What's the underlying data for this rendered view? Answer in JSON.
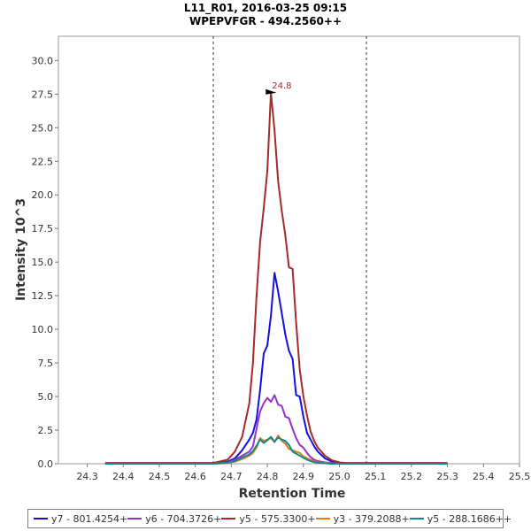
{
  "chart_data": {
    "type": "line",
    "title": "L11_R01, 2016-03-25 09:15",
    "subtitle": "WPEPVFGR - 494.2560++",
    "xlabel": "Retention Time",
    "ylabel": "Intensity 10^3",
    "xlim": [
      24.22,
      25.5
    ],
    "ylim": [
      0,
      31.8
    ],
    "xticks": [
      "24.3",
      "24.4",
      "24.5",
      "24.6",
      "24.7",
      "24.8",
      "24.9",
      "25.0",
      "25.1",
      "25.2",
      "25.3",
      "25.4",
      "25.5"
    ],
    "yticks": [
      "0.0",
      "2.5",
      "5.0",
      "7.5",
      "10.0",
      "12.5",
      "15.0",
      "17.5",
      "20.0",
      "22.5",
      "25.0",
      "27.5",
      "30.0"
    ],
    "boundaries": [
      24.65,
      25.075
    ],
    "annotation": {
      "text": "24.8",
      "x": 24.83,
      "y": 27.6
    },
    "x": [
      24.35,
      24.4,
      24.45,
      24.5,
      24.55,
      24.6,
      24.65,
      24.69,
      24.71,
      24.73,
      24.75,
      24.76,
      24.77,
      24.78,
      24.79,
      24.8,
      24.81,
      24.82,
      24.83,
      24.84,
      24.85,
      24.86,
      24.87,
      24.88,
      24.89,
      24.9,
      24.91,
      24.92,
      24.93,
      24.94,
      24.96,
      24.98,
      25.0,
      25.02,
      25.05,
      25.1,
      25.2,
      25.3
    ],
    "series": [
      {
        "name": "y7 - 801.4254+",
        "color": "#1010e0",
        "values": [
          0.05,
          0.05,
          0.05,
          0.05,
          0.05,
          0.05,
          0.05,
          0.15,
          0.4,
          1.0,
          1.8,
          2.3,
          3.3,
          5.5,
          8.2,
          8.8,
          11.0,
          14.2,
          12.8,
          11.2,
          9.6,
          8.4,
          7.8,
          5.1,
          5.0,
          3.5,
          2.3,
          1.8,
          1.3,
          0.9,
          0.4,
          0.15,
          0.05,
          0.05,
          0.05,
          0.05,
          0.05,
          0.05
        ]
      },
      {
        "name": "y6 - 704.3726+",
        "color": "#9932cc",
        "values": [
          0.02,
          0.02,
          0.02,
          0.02,
          0.02,
          0.02,
          0.02,
          0.1,
          0.3,
          0.6,
          0.9,
          1.3,
          2.6,
          3.9,
          4.5,
          4.9,
          4.6,
          5.1,
          4.4,
          4.3,
          3.5,
          3.4,
          2.6,
          1.9,
          1.4,
          1.2,
          0.8,
          0.5,
          0.3,
          0.2,
          0.1,
          0.05,
          0.02,
          0.02,
          0.02,
          0.02,
          0.02,
          0.02
        ]
      },
      {
        "name": "y5 - 575.3300+",
        "color": "#a52a2a",
        "values": [
          0.05,
          0.05,
          0.05,
          0.05,
          0.05,
          0.05,
          0.05,
          0.3,
          0.9,
          2.0,
          4.5,
          7.5,
          12.5,
          16.5,
          19.0,
          21.8,
          27.6,
          24.8,
          21.0,
          18.8,
          17.0,
          14.6,
          14.5,
          10.5,
          7.0,
          5.0,
          3.6,
          2.4,
          1.7,
          1.2,
          0.6,
          0.25,
          0.1,
          0.05,
          0.05,
          0.05,
          0.05,
          0.05
        ]
      },
      {
        "name": "y3 - 379.2088+",
        "color": "#e07b20",
        "values": [
          0.0,
          0.0,
          0.0,
          0.0,
          0.0,
          0.0,
          0.0,
          0.05,
          0.15,
          0.35,
          0.6,
          0.8,
          1.2,
          1.9,
          1.7,
          1.8,
          1.9,
          1.6,
          2.1,
          1.7,
          1.5,
          1.1,
          1.0,
          0.9,
          0.8,
          0.55,
          0.4,
          0.3,
          0.2,
          0.1,
          0.05,
          0.0,
          0.0,
          0.0,
          0.0,
          0.0,
          0.0,
          0.0
        ]
      },
      {
        "name": "y5 - 288.1686++",
        "color": "#108a8a",
        "values": [
          0.0,
          0.0,
          0.0,
          0.0,
          0.0,
          0.0,
          0.0,
          0.08,
          0.2,
          0.45,
          0.7,
          0.95,
          1.35,
          1.8,
          1.55,
          1.75,
          2.0,
          1.65,
          1.95,
          1.8,
          1.7,
          1.4,
          0.9,
          0.75,
          0.6,
          0.45,
          0.3,
          0.2,
          0.12,
          0.08,
          0.03,
          0.0,
          0.0,
          0.0,
          0.0,
          0.0,
          0.0,
          0.0
        ]
      }
    ]
  }
}
